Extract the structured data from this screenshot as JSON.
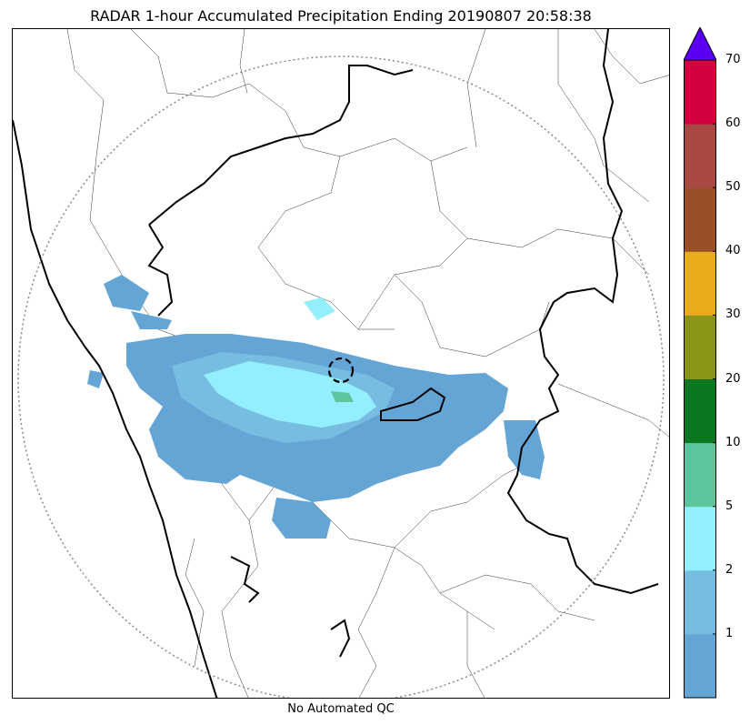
{
  "title": "RADAR 1-hour Accumulated Precipitation Ending 20190807 20:58:38",
  "footer_note": "No Automated QC",
  "colorbar": {
    "levels": [
      {
        "color": "#64a5d5"
      },
      {
        "color": "#76bde1"
      },
      {
        "color": "#93eefd"
      },
      {
        "color": "#5cc59c"
      },
      {
        "color": "#0c7621"
      },
      {
        "color": "#8a9416"
      },
      {
        "color": "#e8ab1c"
      },
      {
        "color": "#9b4f28"
      },
      {
        "color": "#a84a43"
      },
      {
        "color": "#d40141"
      }
    ],
    "extend_color": "#5b00f5",
    "tick_labels": [
      "1",
      "2",
      "5",
      "10",
      "20",
      "30",
      "40",
      "50",
      "60",
      "70"
    ]
  },
  "map": {
    "range_ring_color": "#888888",
    "precip_colors": {
      "light": "#64a5d5",
      "medium": "#76bde1",
      "heavy": "#93eefd",
      "moderate_green": "#5cc59c"
    }
  }
}
